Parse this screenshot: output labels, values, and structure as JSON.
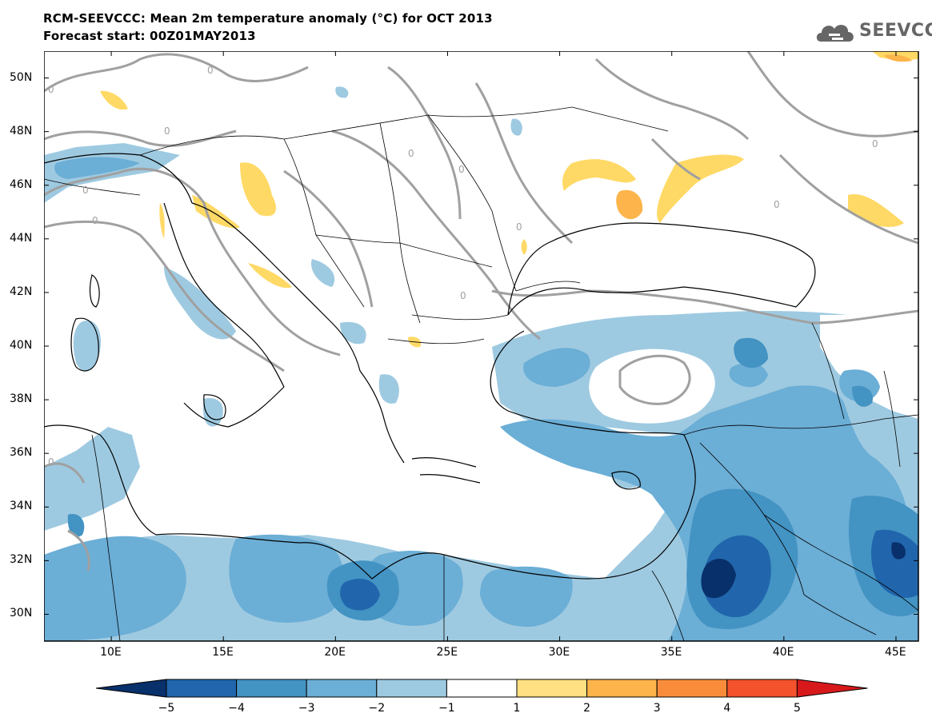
{
  "header": {
    "title": "RCM-SEEVCCC: Mean 2m temperature anomaly (°C) for OCT 2013",
    "subtitle": "Forecast start: 00Z01MAY2013"
  },
  "logo": {
    "text": "SEEVCCC",
    "icon": "cloud-icon"
  },
  "map": {
    "lat_labels": [
      "50N",
      "48N",
      "46N",
      "44N",
      "42N",
      "40N",
      "38N",
      "36N",
      "34N",
      "32N",
      "30N"
    ],
    "lon_labels": [
      "10E",
      "15E",
      "20E",
      "25E",
      "30E",
      "35E",
      "40E",
      "45E"
    ],
    "contour_label": "0",
    "lon_range": [
      7,
      46
    ],
    "lat_range": [
      29,
      51
    ]
  },
  "colorbar": {
    "ticks": [
      "-5",
      "-4",
      "-3",
      "-2",
      "-1",
      "1",
      "2",
      "3",
      "4",
      "5"
    ],
    "colors": [
      "#08306b",
      "#2166ac",
      "#4393c3",
      "#6baed6",
      "#9ecae1",
      "#ffffff",
      "#ffe082",
      "#fdb44b",
      "#f98c3a",
      "#f4522d",
      "#d7191c"
    ]
  }
}
